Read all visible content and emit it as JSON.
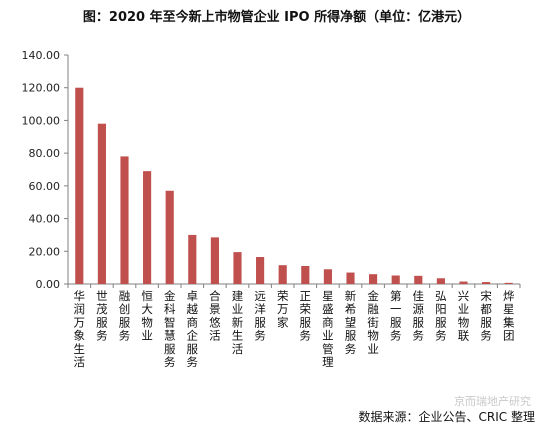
{
  "title": "图：2020 年至今新上市物管企业 IPO 所得净额（单位：亿港元）",
  "source": "数据来源：企业公告、CRIC 整理",
  "watermark": "京而瑞地产研究",
  "colors": {
    "bar": "#c0504d",
    "axis": "#808080"
  },
  "chart_data": {
    "type": "bar",
    "title": "图：2020 年至今新上市物管企业 IPO 所得净额（单位：亿港元）",
    "ylim": [
      0,
      140
    ],
    "yticks": [
      "0.00",
      "20.00",
      "40.00",
      "60.00",
      "80.00",
      "100.00",
      "120.00",
      "140.00"
    ],
    "grid": false,
    "categories": [
      "华润万象生活",
      "世茂服务",
      "融创服务",
      "恒大物业",
      "金科智慧服务",
      "卓越商企服务",
      "合景悠活",
      "建业新生活",
      "远洋服务",
      "荣万家",
      "正荣服务",
      "星盛商业管理",
      "新希望服务",
      "金融街物业",
      "第一服务",
      "佳源服务",
      "弘阳服务",
      "兴业物联",
      "宋都服务",
      "烨星集团"
    ],
    "values": [
      120,
      98,
      78,
      69,
      57,
      30,
      28.5,
      19.5,
      16.5,
      11.5,
      11,
      9,
      7,
      6,
      5.2,
      5,
      3.5,
      1.5,
      1.2,
      0.7
    ]
  }
}
